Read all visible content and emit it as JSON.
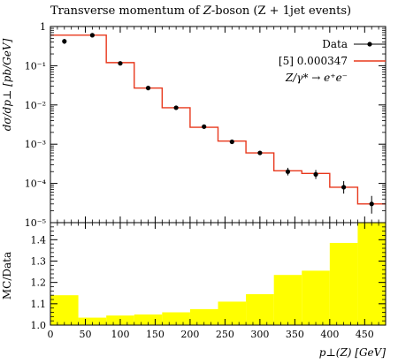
{
  "title": {
    "prefix": "Transverse momentum of ",
    "particle": "Z",
    "suffix": "-boson (Z + 1jet events)"
  },
  "legend": {
    "data_label": "Data",
    "mc_label": "[5] 0.000347",
    "process_label": "Z/γ* → e⁺e⁻"
  },
  "colors": {
    "mc_line": "#e8381c",
    "ratio_band": "#ffff00",
    "data_marker": "#000000"
  },
  "chart_data": [
    {
      "type": "line",
      "panel": "main",
      "ylabel": "dσ/dp⊥ [pb/GeV]",
      "yscale": "log",
      "ylim": [
        1e-05,
        1
      ],
      "xlim": [
        0,
        480
      ],
      "x_ticks": [
        0,
        50,
        100,
        150,
        200,
        250,
        300,
        350,
        400,
        450
      ],
      "y_ticks": [
        1e-05,
        0.0001,
        0.001,
        0.01,
        0.1,
        1
      ],
      "y_tick_labels": [
        "10⁻⁵",
        "10⁻⁴",
        "10⁻³",
        "10⁻²",
        "10⁻¹",
        "1"
      ],
      "bin_edges": [
        0,
        40,
        80,
        120,
        160,
        200,
        240,
        280,
        320,
        360,
        400,
        440,
        480
      ],
      "series": [
        {
          "name": "Data",
          "x": [
            20,
            60,
            100,
            140,
            180,
            220,
            260,
            300,
            340,
            380,
            420,
            460
          ],
          "values": [
            0.42,
            0.6,
            0.115,
            0.027,
            0.0085,
            0.0028,
            0.00115,
            0.0006,
            0.0002,
            0.00017,
            8e-05,
            3e-05
          ],
          "err_low": [
            0.36,
            0.55,
            0.109,
            0.025,
            0.0079,
            0.0026,
            0.00106,
            0.00054,
            0.00016,
            0.00013,
            5.5e-05,
            1.7e-05
          ],
          "err_high": [
            0.48,
            0.65,
            0.121,
            0.029,
            0.0091,
            0.003,
            0.00124,
            0.00066,
            0.00025,
            0.00022,
            0.000115,
            4.8e-05
          ]
        },
        {
          "name": "[5] 0.000347",
          "values": [
            0.6,
            0.6,
            0.12,
            0.027,
            0.0085,
            0.0027,
            0.0012,
            0.0006,
            0.00021,
            0.00018,
            8e-05,
            3e-05
          ]
        }
      ]
    },
    {
      "type": "bar",
      "panel": "ratio",
      "ylabel": "MC/Data",
      "xlabel": "p⊥(Z) [GeV]",
      "ylim": [
        1.0,
        1.48
      ],
      "xlim": [
        0,
        480
      ],
      "x_ticks": [
        0,
        50,
        100,
        150,
        200,
        250,
        300,
        350,
        400,
        450
      ],
      "y_ticks": [
        1.0,
        1.1,
        1.2,
        1.3,
        1.4
      ],
      "bin_edges": [
        0,
        40,
        80,
        120,
        160,
        200,
        240,
        280,
        320,
        360,
        400,
        440,
        480
      ],
      "values": [
        1.14,
        1.035,
        1.045,
        1.05,
        1.06,
        1.075,
        1.11,
        1.145,
        1.235,
        1.255,
        1.385,
        1.48
      ]
    }
  ]
}
